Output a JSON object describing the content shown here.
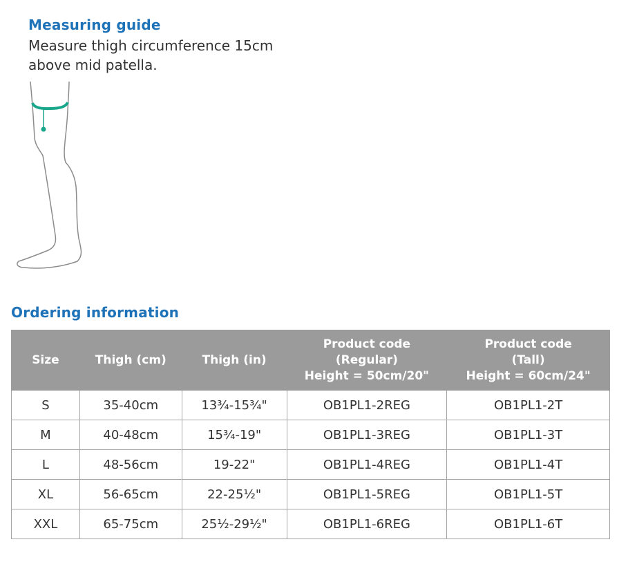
{
  "guide": {
    "title": "Measuring guide",
    "text": "Measure thigh circumference 15cm above mid patella.",
    "accent": "#1aa68a"
  },
  "ordering": {
    "title": "Ordering information",
    "headers": [
      "Size",
      "Thigh (cm)",
      "Thigh (in)",
      "Product code\n(Regular)\nHeight = 50cm/20\"",
      "Product code\n(Tall)\nHeight = 60cm/24\""
    ],
    "rows": [
      [
        "S",
        "35-40cm",
        "13¾-15¾\"",
        "OB1PL1-2REG",
        "OB1PL1-2T"
      ],
      [
        "M",
        "40-48cm",
        "15¾-19\"",
        "OB1PL1-3REG",
        "OB1PL1-3T"
      ],
      [
        "L",
        "48-56cm",
        "19-22\"",
        "OB1PL1-4REG",
        "OB1PL1-4T"
      ],
      [
        "XL",
        "56-65cm",
        "22-25½\"",
        "OB1PL1-5REG",
        "OB1PL1-5T"
      ],
      [
        "XXL",
        "65-75cm",
        "25½-29½\"",
        "OB1PL1-6REG",
        "OB1PL1-6T"
      ]
    ]
  },
  "colors": {
    "heading": "#1e73b8",
    "header_bg": "#9b9b9b"
  }
}
